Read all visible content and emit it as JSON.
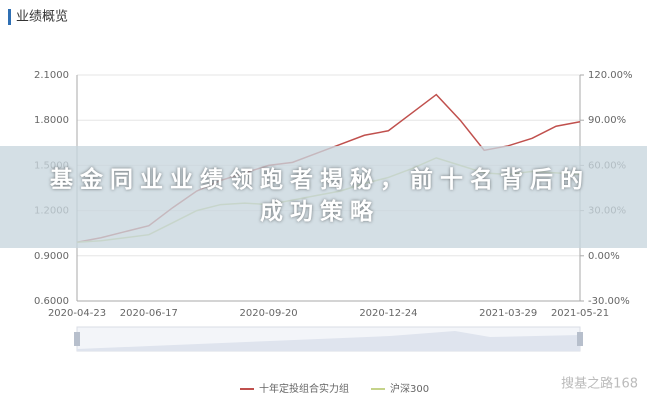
{
  "header": {
    "title": "业绩概览"
  },
  "banner": {
    "title": "基金同业业绩领跑者揭秘，前十名背后的成功策略"
  },
  "watermark": "搜基之路168",
  "chart_data": {
    "type": "line",
    "categories": [
      "2020-04-23",
      null,
      null,
      "2020-06-17",
      null,
      null,
      null,
      null,
      "2020-09-20",
      null,
      null,
      null,
      null,
      "2020-12-24",
      null,
      null,
      null,
      null,
      "2021-03-29",
      null,
      null,
      "2021-05-21"
    ],
    "series": [
      {
        "name": "十年定投组合实力组",
        "color": "#c0504d",
        "values": [
          0.99,
          1.02,
          1.06,
          1.1,
          1.22,
          1.33,
          1.4,
          1.45,
          1.5,
          1.52,
          1.58,
          1.64,
          1.7,
          1.73,
          1.85,
          1.97,
          1.8,
          1.6,
          1.63,
          1.68,
          1.76,
          1.79
        ]
      },
      {
        "name": "沪深300",
        "color": "#c5d38a",
        "values": [
          0.99,
          1.0,
          1.02,
          1.04,
          1.12,
          1.2,
          1.24,
          1.25,
          1.24,
          1.27,
          1.3,
          1.33,
          1.38,
          1.42,
          1.48,
          1.55,
          1.5,
          1.45,
          1.44,
          1.46,
          1.45,
          1.44
        ]
      }
    ],
    "ylim": [
      0.6,
      2.1
    ],
    "yticks": [
      {
        "value": 0.6,
        "label": "0.6000"
      },
      {
        "value": 0.9,
        "label": "0.9000"
      },
      {
        "value": 1.2,
        "label": "1.2000"
      },
      {
        "value": 1.5,
        "label": "1.5000"
      },
      {
        "value": 1.8,
        "label": "1.8000"
      },
      {
        "value": 2.1,
        "label": "2.1000"
      }
    ],
    "y2lim": [
      -30,
      120
    ],
    "y2ticks": [
      {
        "value": -30,
        "label": "-30.00%"
      },
      {
        "value": 0,
        "label": "0.00%"
      },
      {
        "value": 30,
        "label": "30.00%"
      },
      {
        "value": 60,
        "label": "60.00%"
      },
      {
        "value": 90,
        "label": "90.00%"
      },
      {
        "value": 120,
        "label": "120.00%"
      }
    ],
    "grid": true,
    "legend": "bottom"
  }
}
